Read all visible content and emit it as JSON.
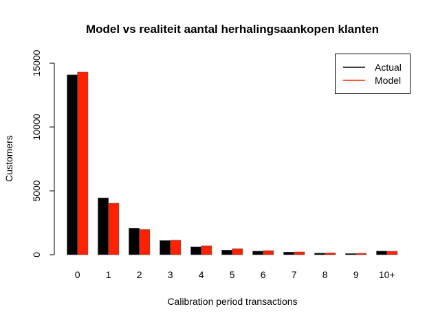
{
  "chart_data": {
    "type": "bar",
    "title": "Model vs realiteit aantal herhalingsaankopen klanten",
    "xlabel": "Calibration period transactions",
    "ylabel": "Customers",
    "categories": [
      "0",
      "1",
      "2",
      "3",
      "4",
      "5",
      "6",
      "7",
      "8",
      "9",
      "10+"
    ],
    "series": [
      {
        "name": "Actual",
        "color": "#000000",
        "values": [
          14090,
          4450,
          2080,
          1110,
          610,
          360,
          280,
          200,
          125,
          90,
          285
        ]
      },
      {
        "name": "Model",
        "color": "#ff2200",
        "values": [
          14300,
          4030,
          1970,
          1130,
          700,
          470,
          320,
          215,
          145,
          110,
          270
        ]
      }
    ],
    "yticks": [
      0,
      5000,
      10000,
      15000
    ],
    "ylim": [
      0,
      15000
    ],
    "grid": false,
    "legend_position": "top-right",
    "legend": [
      {
        "label": "Actual",
        "color": "#000000"
      },
      {
        "label": "Model",
        "color": "#ff2200"
      }
    ]
  }
}
